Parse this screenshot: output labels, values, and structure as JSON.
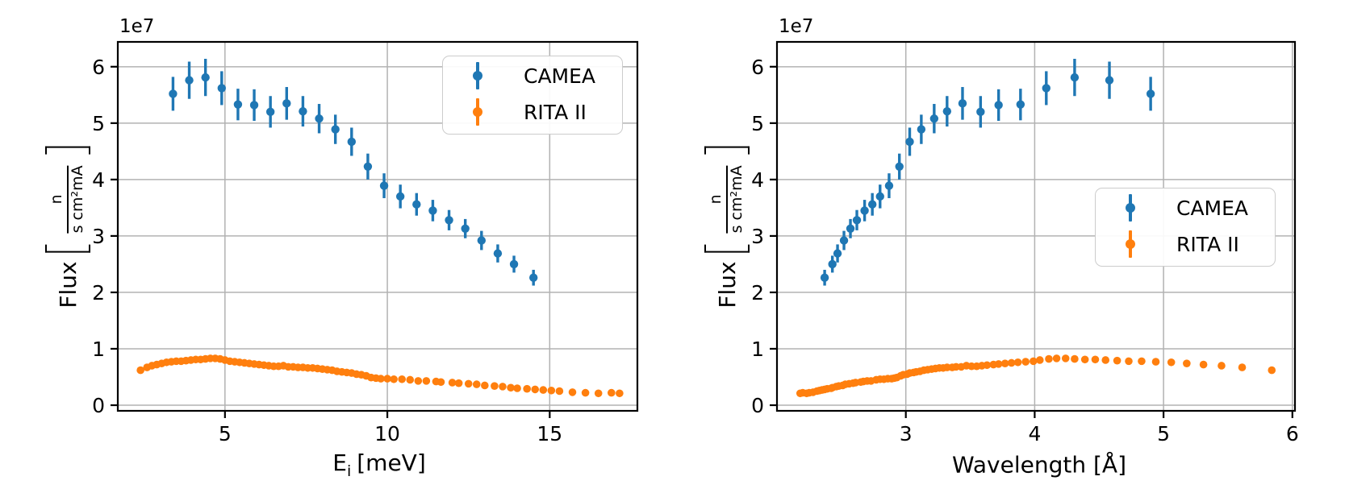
{
  "figure": {
    "offset_text": "1e7",
    "colors": {
      "camea": "#1f77b4",
      "rita": "#ff7f0e",
      "grid": "#b2b2b2",
      "spine": "#000000",
      "tick_label": "#000000",
      "legend_border": "#cccccc",
      "background": "#ffffff"
    }
  },
  "labels": {
    "flux_word": "Flux",
    "frac_numerator": "n",
    "frac_denominator": "s cm²mA",
    "energy_base": "E",
    "energy_sub": "i",
    "energy_unit": "[meV]",
    "wavelength": "Wavelength [Å]"
  },
  "chart_data": [
    {
      "type": "scatter",
      "title": "",
      "xlabel": "E_i [meV]",
      "ylabel": "Flux [n / (s cm² mA)]",
      "y_unit_multiplier": "1e7",
      "xlim": [
        1.7,
        17.7
      ],
      "ylim": [
        -0.1,
        6.44
      ],
      "xticks": [
        5,
        10,
        15
      ],
      "yticks": [
        0,
        1,
        2,
        3,
        4,
        5,
        6
      ],
      "grid": true,
      "legend_position": "upper right",
      "series": [
        {
          "name": "CAMEA",
          "style": "errorbar",
          "color": "#1f77b4",
          "x": [
            3.4,
            3.9,
            4.4,
            4.9,
            5.4,
            5.9,
            6.4,
            6.9,
            7.4,
            7.9,
            8.4,
            8.9,
            9.4,
            9.9,
            10.4,
            10.9,
            11.4,
            11.9,
            12.4,
            12.9,
            13.4,
            13.9,
            14.5
          ],
          "y": [
            5.52,
            5.76,
            5.81,
            5.62,
            5.33,
            5.32,
            5.2,
            5.35,
            5.21,
            5.08,
            4.89,
            4.67,
            4.23,
            3.89,
            3.7,
            3.56,
            3.45,
            3.28,
            3.13,
            2.92,
            2.69,
            2.5,
            2.26
          ],
          "yerr": [
            0.3,
            0.33,
            0.33,
            0.3,
            0.28,
            0.28,
            0.28,
            0.29,
            0.27,
            0.26,
            0.26,
            0.25,
            0.23,
            0.22,
            0.21,
            0.2,
            0.19,
            0.18,
            0.17,
            0.17,
            0.16,
            0.15,
            0.14
          ]
        },
        {
          "name": "RITA II",
          "style": "dots",
          "color": "#ff7f0e",
          "x": [
            2.4,
            2.6,
            2.75,
            2.9,
            3.05,
            3.2,
            3.35,
            3.5,
            3.65,
            3.8,
            3.95,
            4.1,
            4.25,
            4.4,
            4.55,
            4.7,
            4.85,
            5.0,
            5.15,
            5.3,
            5.45,
            5.6,
            5.75,
            5.9,
            6.05,
            6.2,
            6.35,
            6.5,
            6.65,
            6.8,
            6.95,
            7.1,
            7.25,
            7.4,
            7.55,
            7.7,
            7.85,
            8.0,
            8.15,
            8.3,
            8.45,
            8.6,
            8.75,
            8.9,
            9.05,
            9.2,
            9.35,
            9.5,
            9.65,
            9.8,
            10.0,
            10.2,
            10.45,
            10.7,
            10.95,
            11.2,
            11.5,
            11.65,
            12.0,
            12.2,
            12.5,
            12.75,
            13.0,
            13.3,
            13.55,
            13.8,
            14.0,
            14.3,
            14.55,
            14.8,
            15.05,
            15.3,
            15.7,
            16.1,
            16.5,
            16.9,
            17.15
          ],
          "y": [
            0.62,
            0.67,
            0.7,
            0.72,
            0.74,
            0.76,
            0.77,
            0.78,
            0.78,
            0.79,
            0.8,
            0.81,
            0.81,
            0.82,
            0.83,
            0.83,
            0.82,
            0.8,
            0.78,
            0.77,
            0.76,
            0.75,
            0.74,
            0.73,
            0.72,
            0.71,
            0.7,
            0.69,
            0.69,
            0.7,
            0.68,
            0.68,
            0.67,
            0.67,
            0.66,
            0.66,
            0.65,
            0.64,
            0.63,
            0.62,
            0.6,
            0.59,
            0.58,
            0.57,
            0.55,
            0.54,
            0.52,
            0.49,
            0.48,
            0.47,
            0.47,
            0.46,
            0.46,
            0.45,
            0.43,
            0.43,
            0.42,
            0.41,
            0.4,
            0.39,
            0.38,
            0.37,
            0.35,
            0.34,
            0.33,
            0.31,
            0.3,
            0.29,
            0.28,
            0.27,
            0.26,
            0.25,
            0.23,
            0.22,
            0.21,
            0.22,
            0.21
          ]
        }
      ]
    },
    {
      "type": "scatter",
      "title": "",
      "xlabel": "Wavelength [Å]",
      "ylabel": "Flux [n / (s cm² mA)]",
      "y_unit_multiplier": "1e7",
      "xlim": [
        2.0,
        6.02
      ],
      "ylim": [
        -0.1,
        6.44
      ],
      "xticks": [
        3,
        4,
        5,
        6
      ],
      "yticks": [
        0,
        1,
        2,
        3,
        4,
        5,
        6
      ],
      "grid": true,
      "legend_position": "center right",
      "series": [
        {
          "name": "CAMEA",
          "style": "errorbar",
          "color": "#1f77b4",
          "x": [
            4.9,
            4.58,
            4.31,
            4.09,
            3.89,
            3.72,
            3.58,
            3.44,
            3.32,
            3.22,
            3.12,
            3.03,
            2.95,
            2.87,
            2.8,
            2.74,
            2.68,
            2.62,
            2.57,
            2.52,
            2.47,
            2.43,
            2.37
          ],
          "y": [
            5.52,
            5.76,
            5.81,
            5.62,
            5.33,
            5.32,
            5.2,
            5.35,
            5.21,
            5.08,
            4.89,
            4.67,
            4.23,
            3.89,
            3.7,
            3.56,
            3.45,
            3.28,
            3.13,
            2.92,
            2.69,
            2.5,
            2.26
          ],
          "yerr": [
            0.3,
            0.33,
            0.33,
            0.3,
            0.28,
            0.28,
            0.28,
            0.29,
            0.27,
            0.26,
            0.26,
            0.25,
            0.23,
            0.22,
            0.21,
            0.2,
            0.19,
            0.18,
            0.17,
            0.17,
            0.16,
            0.15,
            0.14
          ]
        },
        {
          "name": "RITA II",
          "style": "dots",
          "color": "#ff7f0e",
          "x": [
            5.84,
            5.61,
            5.45,
            5.31,
            5.18,
            5.06,
            4.94,
            4.83,
            4.73,
            4.64,
            4.55,
            4.47,
            4.39,
            4.31,
            4.24,
            4.17,
            4.11,
            4.04,
            3.99,
            3.93,
            3.87,
            3.82,
            3.77,
            3.72,
            3.68,
            3.63,
            3.59,
            3.55,
            3.51,
            3.47,
            3.43,
            3.39,
            3.36,
            3.32,
            3.29,
            3.26,
            3.23,
            3.2,
            3.17,
            3.14,
            3.11,
            3.08,
            3.06,
            3.03,
            3.01,
            2.98,
            2.96,
            2.93,
            2.91,
            2.89,
            2.86,
            2.83,
            2.8,
            2.77,
            2.73,
            2.7,
            2.67,
            2.65,
            2.61,
            2.59,
            2.56,
            2.53,
            2.51,
            2.48,
            2.46,
            2.43,
            2.42,
            2.39,
            2.37,
            2.35,
            2.33,
            2.31,
            2.28,
            2.25,
            2.23,
            2.2,
            2.18
          ],
          "y": [
            0.62,
            0.67,
            0.7,
            0.72,
            0.74,
            0.76,
            0.77,
            0.78,
            0.78,
            0.79,
            0.8,
            0.81,
            0.81,
            0.82,
            0.83,
            0.83,
            0.82,
            0.8,
            0.78,
            0.77,
            0.76,
            0.75,
            0.74,
            0.73,
            0.72,
            0.71,
            0.7,
            0.69,
            0.69,
            0.7,
            0.68,
            0.68,
            0.67,
            0.67,
            0.66,
            0.66,
            0.65,
            0.64,
            0.63,
            0.62,
            0.6,
            0.59,
            0.58,
            0.57,
            0.55,
            0.54,
            0.52,
            0.49,
            0.48,
            0.47,
            0.47,
            0.46,
            0.46,
            0.45,
            0.43,
            0.43,
            0.42,
            0.41,
            0.4,
            0.39,
            0.38,
            0.37,
            0.35,
            0.34,
            0.33,
            0.31,
            0.3,
            0.29,
            0.28,
            0.27,
            0.26,
            0.25,
            0.23,
            0.22,
            0.21,
            0.22,
            0.21
          ]
        }
      ]
    }
  ]
}
